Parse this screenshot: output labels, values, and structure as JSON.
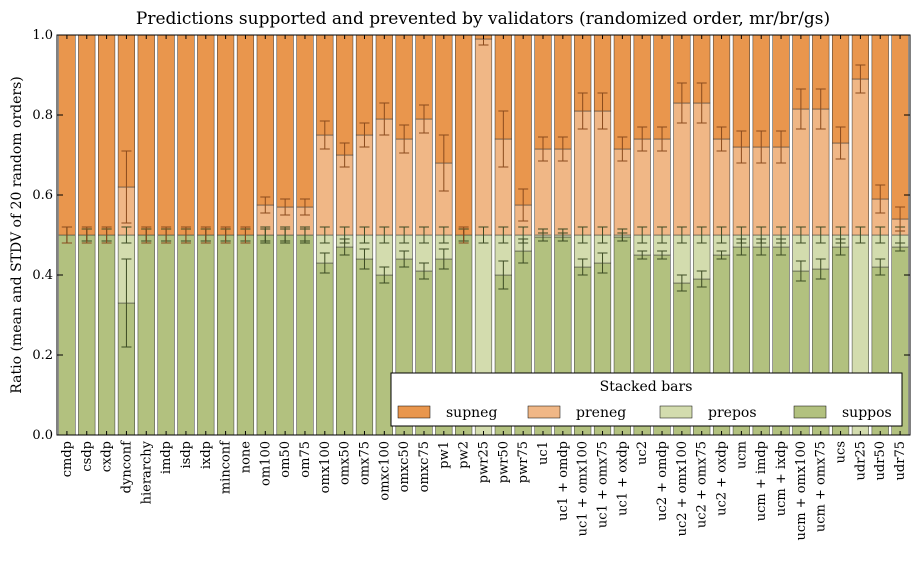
{
  "chart_data": {
    "type": "bar",
    "stacked": true,
    "title": "Predictions supported and prevented by validators (randomized order, mr/br/gs)",
    "xlabel": "",
    "ylabel": "Ratio (mean and STDV of 20 random orders)",
    "ylim": [
      0,
      1.0
    ],
    "yticks": [
      "0.0",
      "0.2",
      "0.4",
      "0.6",
      "0.8",
      "1.0"
    ],
    "grid": false,
    "legend": {
      "title": "Stacked bars",
      "placement": "lower-right"
    },
    "categories": [
      "cmdp",
      "csdp",
      "cxdp",
      "dynconf",
      "hierarchy",
      "imdp",
      "isdp",
      "ixdp",
      "minconf",
      "none",
      "om100",
      "om50",
      "om75",
      "omx100",
      "omx50",
      "omx75",
      "omxc100",
      "omxc50",
      "omxc75",
      "pw1",
      "pw2",
      "pwr25",
      "pwr50",
      "pwr75",
      "uc1",
      "uc1 + omdp",
      "uc1 + omx100",
      "uc1 + omx75",
      "uc1 + oxdp",
      "uc2",
      "uc2 + omdp",
      "uc2 + omx100",
      "uc2 + omx75",
      "uc2 + oxdp",
      "ucm",
      "ucm + imdp",
      "ucm + ixdp",
      "ucm + omx100",
      "ucm + omx75",
      "ucs",
      "udr25",
      "udr50",
      "udr75"
    ],
    "series": [
      {
        "name": "suppos",
        "color": "#b2c17f",
        "values": [
          0.5,
          0.5,
          0.5,
          0.33,
          0.5,
          0.5,
          0.5,
          0.5,
          0.5,
          0.5,
          0.5,
          0.5,
          0.5,
          0.43,
          0.47,
          0.44,
          0.4,
          0.44,
          0.41,
          0.44,
          0.5,
          0.0,
          0.4,
          0.46,
          0.495,
          0.495,
          0.42,
          0.43,
          0.495,
          0.45,
          0.45,
          0.38,
          0.39,
          0.45,
          0.47,
          0.47,
          0.47,
          0.41,
          0.415,
          0.47,
          0.0,
          0.42,
          0.47
        ]
      },
      {
        "name": "prepos",
        "color": "#d3dcae",
        "values": [
          0.0,
          0.0,
          0.0,
          0.17,
          0.0,
          0.0,
          0.0,
          0.0,
          0.0,
          0.0,
          0.0,
          0.0,
          0.0,
          0.07,
          0.03,
          0.06,
          0.1,
          0.06,
          0.09,
          0.06,
          0.0,
          0.5,
          0.1,
          0.04,
          0.005,
          0.005,
          0.08,
          0.07,
          0.005,
          0.05,
          0.05,
          0.12,
          0.11,
          0.05,
          0.03,
          0.03,
          0.03,
          0.09,
          0.085,
          0.03,
          0.5,
          0.08,
          0.03
        ]
      },
      {
        "name": "preneg",
        "color": "#f0b786",
        "values": [
          0.0,
          0.0,
          0.0,
          0.12,
          0.0,
          0.0,
          0.0,
          0.0,
          0.0,
          0.0,
          0.075,
          0.07,
          0.07,
          0.25,
          0.2,
          0.25,
          0.29,
          0.24,
          0.29,
          0.18,
          0.0,
          0.49,
          0.24,
          0.075,
          0.215,
          0.215,
          0.31,
          0.31,
          0.215,
          0.24,
          0.24,
          0.33,
          0.33,
          0.24,
          0.22,
          0.22,
          0.22,
          0.315,
          0.315,
          0.23,
          0.39,
          0.09,
          0.04
        ]
      },
      {
        "name": "supneg",
        "color": "#e9964d",
        "values": [
          0.5,
          0.5,
          0.5,
          0.38,
          0.5,
          0.5,
          0.5,
          0.5,
          0.5,
          0.5,
          0.425,
          0.43,
          0.43,
          0.25,
          0.3,
          0.25,
          0.21,
          0.26,
          0.21,
          0.32,
          0.5,
          0.01,
          0.26,
          0.425,
          0.285,
          0.285,
          0.19,
          0.19,
          0.285,
          0.26,
          0.26,
          0.17,
          0.17,
          0.26,
          0.28,
          0.28,
          0.28,
          0.185,
          0.185,
          0.27,
          0.11,
          0.41,
          0.46
        ]
      }
    ],
    "errors": {
      "suppos": [
        0.02,
        0.015,
        0.015,
        0.11,
        0.015,
        0.015,
        0.015,
        0.015,
        0.015,
        0.015,
        0.015,
        0.015,
        0.015,
        0.025,
        0.02,
        0.025,
        0.02,
        0.02,
        0.02,
        0.025,
        0.015,
        0,
        0.035,
        0.03,
        0.01,
        0.01,
        0.02,
        0.025,
        0.01,
        0.01,
        0.01,
        0.02,
        0.02,
        0.01,
        0.02,
        0.02,
        0.02,
        0.025,
        0.025,
        0.02,
        0,
        0.02,
        0.01
      ],
      "prepos": [
        0.02,
        0.015,
        0.015,
        0.02,
        0.015,
        0.015,
        0.015,
        0.015,
        0.015,
        0.015,
        0.02,
        0.02,
        0.02,
        0.02,
        0.02,
        0.02,
        0.02,
        0.02,
        0.02,
        0.02,
        0.015,
        0.02,
        0.02,
        0.02,
        0.015,
        0.015,
        0.02,
        0.02,
        0.015,
        0.02,
        0.02,
        0.02,
        0.02,
        0.02,
        0.02,
        0.02,
        0.02,
        0.02,
        0.02,
        0.02,
        0.02,
        0.02,
        0.02
      ],
      "preneg": [
        0.02,
        0.02,
        0.02,
        0.09,
        0.02,
        0.02,
        0.02,
        0.02,
        0.02,
        0.02,
        0.02,
        0.02,
        0.02,
        0.035,
        0.03,
        0.03,
        0.04,
        0.035,
        0.035,
        0.07,
        0.02,
        0.015,
        0.07,
        0.04,
        0.03,
        0.03,
        0.045,
        0.045,
        0.03,
        0.03,
        0.03,
        0.05,
        0.05,
        0.03,
        0.04,
        0.04,
        0.04,
        0.05,
        0.05,
        0.04,
        0.035,
        0.035,
        0.03
      ]
    }
  }
}
